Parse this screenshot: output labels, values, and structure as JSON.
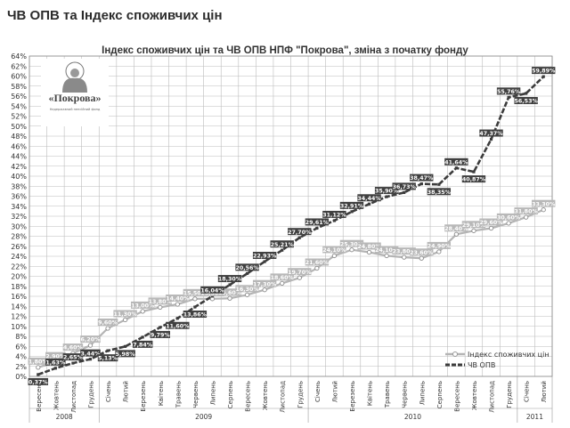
{
  "page": {
    "heading": "ЧВ ОПВ та Індекс споживчих цін"
  },
  "logo": {
    "name": "«Покрова»",
    "tagline": "Недержавний пенсійний фонд"
  },
  "colors": {
    "cpi": "#b4b4b4",
    "nav": "#3c3c3c",
    "grid": "#bcbcbc",
    "label_cpi_bg": "#b8b8b8",
    "label_nav_bg": "#404040"
  },
  "chart_data": {
    "type": "line",
    "title": "Індекс споживчих цін та  ЧВ ОПВ НПФ \"Покрова\", зміна з початку фонду",
    "xlabel": "",
    "ylabel": "",
    "ylim": [
      0,
      64
    ],
    "ytick_step": 2,
    "grid": true,
    "legend_position": "bottom-right",
    "categories": [
      "Вересень",
      "Жовтень",
      "Листопад",
      "Грудень",
      "Січень",
      "Лютий",
      "Березень",
      "Квітень",
      "Травень",
      "Червень",
      "Липень",
      "Серпень",
      "Вересень",
      "Жовтень",
      "Листопад",
      "Грудень",
      "Січень",
      "Лютий",
      "Березень",
      "Квітень",
      "Травень",
      "Червень",
      "Липень",
      "Серпень",
      "Вересень",
      "Жовтень",
      "Листопад",
      "Грудень",
      "Січень",
      "Лютий"
    ],
    "year_groups": [
      {
        "label": "2008",
        "start": 0,
        "end": 3
      },
      {
        "label": "2009",
        "start": 4,
        "end": 15
      },
      {
        "label": "2010",
        "start": 16,
        "end": 27
      },
      {
        "label": "2011",
        "start": 28,
        "end": 29
      }
    ],
    "series": [
      {
        "name": "Індекс споживчих цін",
        "values": [
          1.8,
          2.9,
          4.6,
          6.2,
          9.6,
          11.3,
          13.0,
          13.8,
          14.4,
          15.5,
          15.5,
          15.6,
          16.3,
          17.3,
          18.6,
          19.7,
          21.6,
          24.1,
          25.3,
          24.8,
          24.1,
          23.8,
          23.6,
          24.9,
          28.4,
          29.1,
          29.6,
          30.6,
          31.8,
          33.3
        ],
        "labels": [
          "1,80%",
          "2,90%",
          "4,60%",
          "6,20%",
          "9,60%",
          "11,30%",
          "13,00%",
          "13,80%",
          "14,40%",
          "15,50%",
          "15,50%",
          "15,60%",
          "16,30%",
          "17,30%",
          "18,60%",
          "19,70%",
          "21,60%",
          "24,10%",
          "25,30%",
          "24,80%",
          "24,10%",
          "23,80%",
          "23,60%",
          "24,90%",
          "28,40%",
          "29,10%",
          "29,60%",
          "30,60%",
          "31,80%",
          "33,30%"
        ]
      },
      {
        "name": "ЧВ ОПВ",
        "values": [
          0.37,
          1.63,
          2.65,
          3.44,
          5.13,
          5.98,
          7.84,
          9.79,
          11.6,
          13.86,
          16.04,
          18.3,
          20.56,
          22.93,
          25.21,
          27.7,
          29.61,
          31.12,
          32.91,
          34.44,
          35.9,
          36.73,
          38.47,
          38.35,
          41.64,
          40.87,
          47.37,
          55.76,
          56.53,
          59.89
        ],
        "labels": [
          "0,37%",
          "1,63%",
          "2,65%",
          "3,44%",
          "5,13%",
          "5,98%",
          "7,84%",
          "9,79%",
          "11,60%",
          "13,86%",
          "16,04%",
          "18,30%",
          "20,56%",
          "22,93%",
          "25,21%",
          "27,70%",
          "29,61%",
          "31,12%",
          "32,91%",
          "34,44%",
          "35,90%",
          "36,73%",
          "38,47%",
          "38,35%",
          "41,64%",
          "40,87%",
          "47,37%",
          "55,76%",
          "56,53%",
          "59,89%"
        ]
      }
    ]
  }
}
